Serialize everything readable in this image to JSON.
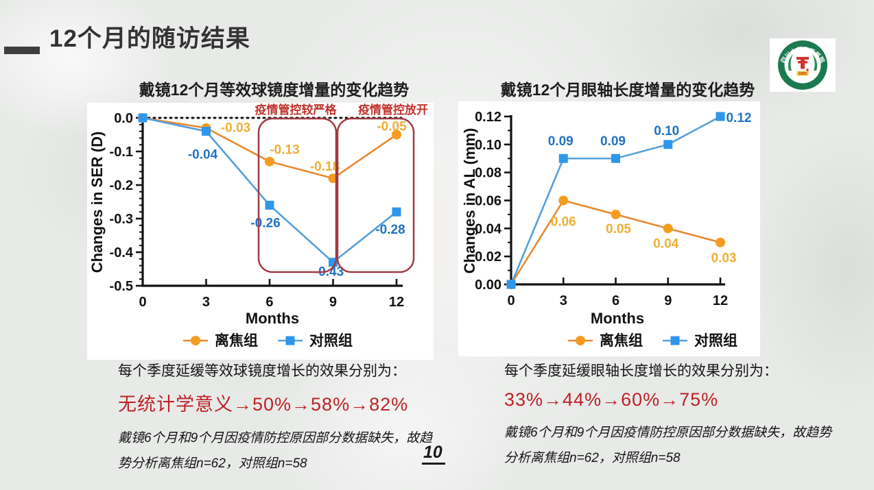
{
  "slide": {
    "title": "12个月的随访结果",
    "page_number": "10"
  },
  "logo": {
    "ring_text_cn": "四川大学华西医院",
    "ring_text_en": "WEST CHINA HOSPITAL, SCU",
    "year": "1892"
  },
  "colors": {
    "orange_marker": "#F59C20",
    "orange_line": "#E78A2E",
    "orange_label": "#EDAF35",
    "blue_marker": "#2F96EC",
    "blue_line": "#559FD8",
    "blue_label": "#2173C5",
    "box_red": "#A03B42",
    "annotation_red": "#C2332E",
    "stats_red": "#BE2126"
  },
  "chart_data": [
    {
      "type": "line",
      "title": "戴镜12个月等效球镜度增量的变化趋势",
      "xlabel": "Months",
      "ylabel": "Changes in SER (D)",
      "x": [
        0,
        3,
        6,
        9,
        12
      ],
      "xtick_labels": [
        "0",
        "3",
        "6",
        "9",
        "12"
      ],
      "ylim": [
        -0.5,
        0.0
      ],
      "ytick_values": [
        0.0,
        -0.1,
        -0.2,
        -0.3,
        -0.4,
        -0.5
      ],
      "ytick_labels": [
        "0.0",
        "-0.1",
        "-0.2",
        "-0.3",
        "-0.4",
        "-0.5"
      ],
      "zero_line": "dotted",
      "legend_position": "bottom",
      "series": [
        {
          "name": "离焦组",
          "marker": "circle",
          "values": [
            0,
            -0.03,
            -0.13,
            -0.18,
            -0.05
          ],
          "labels": [
            "",
            "-0.03",
            "-0.13",
            "-0.18",
            "-0.05"
          ],
          "color": "#F59C20",
          "line_color": "#E78A2E",
          "label_color": "#EDAF35"
        },
        {
          "name": "对照组",
          "marker": "square",
          "values": [
            0,
            -0.04,
            -0.26,
            -0.43,
            -0.28
          ],
          "labels": [
            "",
            "-0.04",
            "-0.26",
            "-0.43",
            "-0.28"
          ],
          "color": "#2F96EC",
          "line_color": "#559FD8",
          "label_color": "#2173C5"
        }
      ],
      "annotations": [
        "疫情管控较严格",
        "疫情管控放开"
      ],
      "highlight_boxes": [
        {
          "x_range": [
            5.5,
            9.15
          ],
          "label": "疫情管控较严格"
        },
        {
          "x_range": [
            9.25,
            12.85
          ],
          "label": "疫情管控放开"
        }
      ]
    },
    {
      "type": "line",
      "title": "戴镜12个月眼轴长度增量的变化趋势",
      "xlabel": "Months",
      "ylabel": "Changes in AL (mm)",
      "x": [
        0,
        3,
        6,
        9,
        12
      ],
      "xtick_labels": [
        "0",
        "3",
        "6",
        "9",
        "12"
      ],
      "ylim": [
        0.0,
        0.12
      ],
      "ytick_values": [
        0.0,
        0.02,
        0.04,
        0.06,
        0.08,
        0.1,
        0.12
      ],
      "ytick_labels": [
        "0.00",
        "0.02",
        "0.04",
        "0.06",
        "0.08",
        "0.10",
        "0.12"
      ],
      "legend_position": "bottom",
      "series": [
        {
          "name": "离焦组",
          "marker": "circle",
          "values": [
            0,
            0.06,
            0.05,
            0.04,
            0.03
          ],
          "labels": [
            "",
            "0.06",
            "0.05",
            "0.04",
            "0.03"
          ],
          "color": "#F59C20",
          "line_color": "#E78A2E",
          "label_color": "#EDAF35"
        },
        {
          "name": "对照组",
          "marker": "square",
          "values": [
            0,
            0.09,
            0.09,
            0.1,
            0.12
          ],
          "labels": [
            "",
            "0.09",
            "0.09",
            "0.10",
            "0.12"
          ],
          "color": "#2F96EC",
          "line_color": "#559FD8",
          "label_color": "#2173C5"
        }
      ]
    }
  ],
  "captions": [
    {
      "heading": "每个季度延缓等效球镜度增长的效果分别为：",
      "stats": "无统计学意义→50%→58%→82%",
      "note": "戴镜6个月和9个月因疫情防控原因部分数据缺失，故趋\n势分析离焦组n=62，对照组n=58"
    },
    {
      "heading": "每个季度延缓眼轴长度增长的效果分别为：",
      "stats": "33%→44%→60%→75%",
      "note": "戴镜6个月和9个月因疫情防控原因部分数据缺失，故趋势\n分析离焦组n=62，对照组n=58"
    }
  ]
}
